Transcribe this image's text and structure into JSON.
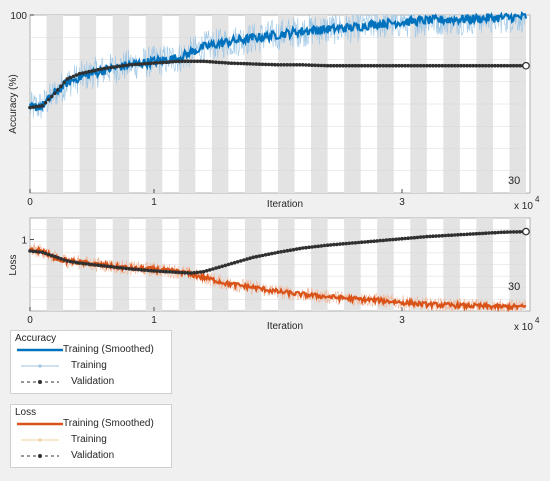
{
  "colors": {
    "background": "#f0f0f0",
    "axes_bg": "#ffffff",
    "epoch_band": "#e3e3e3",
    "accuracy": "#0072bd",
    "accuracy_raw": "#9cc6e6",
    "loss": "#d95319",
    "loss_raw": "#f0b89c",
    "validation": "#303030"
  },
  "chart_data": [
    {
      "type": "line",
      "ylabel": "Accuracy (%)",
      "xlabel": "Iteration",
      "x_exponent_label": "x 10",
      "x_exponent_power": "4",
      "annotation": "30",
      "xlim": [
        0,
        40000
      ],
      "ylim": [
        0,
        100
      ],
      "xticks": [
        0,
        10000,
        30000
      ],
      "xtick_labels": [
        "0",
        "1",
        "3"
      ],
      "yticks": [
        100
      ],
      "ytick_labels": [
        "100"
      ],
      "epoch_bands": 30,
      "grid": true,
      "series": [
        {
          "name": "Training (Smoothed)",
          "style": "smoothed",
          "x": [
            0,
            1000,
            2000,
            3000,
            4000,
            6000,
            8000,
            10000,
            12000,
            13000,
            14000,
            16000,
            18000,
            20000,
            22000,
            24000,
            26000,
            28000,
            30000,
            32000,
            34000,
            36000,
            38000,
            40000
          ],
          "y": [
            48,
            49,
            56,
            62,
            65,
            69,
            72,
            74,
            76,
            79,
            82,
            85,
            87,
            89,
            91,
            92,
            93,
            95,
            96,
            97,
            97.5,
            98,
            98.5,
            99
          ]
        },
        {
          "name": "Validation",
          "style": "validation",
          "x": [
            0,
            1000,
            2000,
            3000,
            4000,
            6000,
            8000,
            10000,
            12000,
            13000,
            14000,
            16000,
            18000,
            20000,
            22000,
            24000,
            26000,
            28000,
            30000,
            32000,
            34000,
            36000,
            38000,
            40000
          ],
          "y": [
            48,
            49,
            56,
            64,
            67,
            70,
            72,
            73,
            74,
            74,
            74,
            73,
            72.5,
            72,
            72,
            71.5,
            71.5,
            71.5,
            71.5,
            71.5,
            71.5,
            71.5,
            71.5,
            71.5
          ]
        }
      ]
    },
    {
      "type": "line",
      "ylabel": "Loss",
      "xlabel": "Iteration",
      "x_exponent_label": "x 10",
      "x_exponent_power": "4",
      "annotation": "30",
      "xlim": [
        0,
        40000
      ],
      "ylim": [
        0,
        1.3
      ],
      "xticks": [
        0,
        10000,
        30000
      ],
      "xtick_labels": [
        "0",
        "1",
        "3"
      ],
      "yticks": [
        1
      ],
      "ytick_labels": [
        "1"
      ],
      "epoch_bands": 30,
      "grid": true,
      "series": [
        {
          "name": "Training (Smoothed)",
          "style": "smoothed",
          "x": [
            0,
            1000,
            2000,
            3000,
            4000,
            6000,
            8000,
            10000,
            12000,
            14000,
            16000,
            18000,
            20000,
            22000,
            24000,
            26000,
            28000,
            30000,
            32000,
            34000,
            36000,
            38000,
            40000
          ],
          "y": [
            0.85,
            0.84,
            0.74,
            0.7,
            0.68,
            0.64,
            0.6,
            0.58,
            0.55,
            0.47,
            0.38,
            0.33,
            0.27,
            0.23,
            0.2,
            0.17,
            0.15,
            0.12,
            0.09,
            0.08,
            0.07,
            0.06,
            0.06
          ]
        },
        {
          "name": "Validation",
          "style": "validation",
          "x": [
            0,
            1000,
            2000,
            3000,
            4000,
            6000,
            8000,
            10000,
            12000,
            13000,
            14000,
            16000,
            18000,
            20000,
            22000,
            24000,
            26000,
            28000,
            30000,
            32000,
            34000,
            36000,
            38000,
            40000
          ],
          "y": [
            0.84,
            0.82,
            0.76,
            0.7,
            0.67,
            0.63,
            0.59,
            0.56,
            0.54,
            0.53,
            0.55,
            0.65,
            0.75,
            0.82,
            0.88,
            0.92,
            0.95,
            0.98,
            1.01,
            1.04,
            1.06,
            1.08,
            1.1,
            1.11
          ]
        }
      ]
    }
  ],
  "legend": {
    "accuracy": {
      "title": "Accuracy",
      "items": [
        "Training (Smoothed)",
        "Training",
        "Validation"
      ]
    },
    "loss": {
      "title": "Loss",
      "items": [
        "Training (Smoothed)",
        "Training",
        "Validation"
      ]
    }
  }
}
